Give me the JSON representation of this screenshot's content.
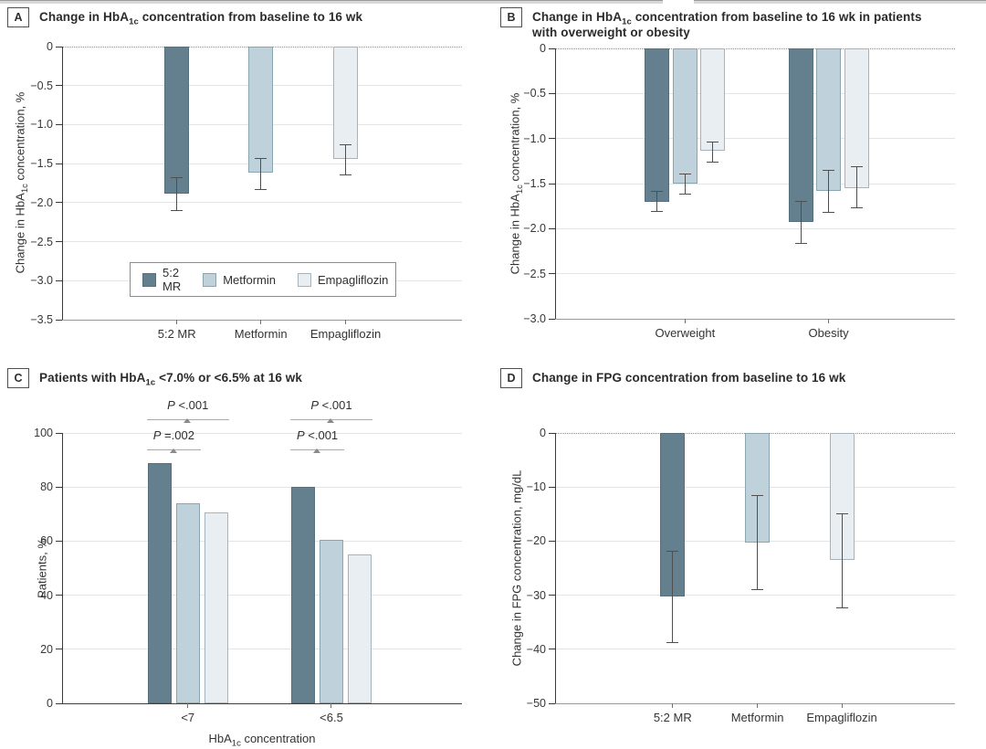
{
  "series": [
    {
      "name": "5:2 MR",
      "color": "#64808f",
      "border": "#42596370"
    },
    {
      "name": "Metformin",
      "color": "#bfd2db",
      "border": "#8aa4b0"
    },
    {
      "name": "Empagliflozin",
      "color": "#e9eef2",
      "border": "#a5b4bc"
    }
  ],
  "chart_data": [
    {
      "panel": "A",
      "type": "bar",
      "title_pre": "Change in HbA",
      "title_sub": "1c",
      "title_post": " concentration from baseline to 16 wk",
      "ylabel_pre": "Change in HbA",
      "ylabel_sub": "1c",
      "ylabel_post": " concentration, %",
      "ylim": [
        0,
        -3.5
      ],
      "yticks": [
        0,
        -0.5,
        -1,
        -1.5,
        -2,
        -2.5,
        -3,
        -3.5
      ],
      "ytick_labels": [
        "0",
        "−0.5",
        "−1.0",
        "−1.5",
        "−2.0",
        "−2.5",
        "−3.0",
        "−3.5"
      ],
      "categories": [
        "5:2 MR",
        "Metformin",
        "Empagliflozin"
      ],
      "values": [
        -1.88,
        -1.62,
        -1.44
      ],
      "ci": [
        [
          -1.68,
          -2.1
        ],
        [
          -1.43,
          -1.83
        ],
        [
          -1.26,
          -1.64
        ]
      ],
      "grid": true,
      "zero_line": "dotted",
      "legend_position": "inside-bottom-left"
    },
    {
      "panel": "B",
      "type": "bar",
      "grouped": true,
      "title_pre": "Change in HbA",
      "title_sub": "1c",
      "title_post": " concentration from baseline to 16 wk in patients with overweight or obesity",
      "ylabel_pre": "Change in HbA",
      "ylabel_sub": "1c",
      "ylabel_post": " concentration, %",
      "ylim": [
        0,
        -3
      ],
      "yticks": [
        0,
        -0.5,
        -1,
        -1.5,
        -2,
        -2.5,
        -3
      ],
      "ytick_labels": [
        "0",
        "−0.5",
        "−1.0",
        "−1.5",
        "−2.0",
        "−2.5",
        "−3.0"
      ],
      "categories": [
        "Overweight",
        "Obesity"
      ],
      "series": [
        {
          "name": "5:2 MR",
          "values": [
            -1.7,
            -1.93
          ],
          "ci": [
            [
              -1.59,
              -1.81
            ],
            [
              -1.7,
              -2.16
            ]
          ]
        },
        {
          "name": "Metformin",
          "values": [
            -1.5,
            -1.58
          ],
          "ci": [
            [
              -1.39,
              -1.62
            ],
            [
              -1.35,
              -1.82
            ]
          ]
        },
        {
          "name": "Empagliflozin",
          "values": [
            -1.14,
            -1.55
          ],
          "ci": [
            [
              -1.04,
              -1.26
            ],
            [
              -1.31,
              -1.77
            ]
          ]
        }
      ],
      "grid": true,
      "zero_line": "dotted"
    },
    {
      "panel": "C",
      "type": "bar",
      "grouped": true,
      "title_pre": "Patients with HbA",
      "title_sub": "1c",
      "title_post": " <7.0% or <6.5% at 16 wk",
      "ylabel_pre": "Patients, %",
      "ylabel_sub": "",
      "ylabel_post": "",
      "xlabel_pre": "HbA",
      "xlabel_sub": "1c",
      "xlabel_post": " concentration",
      "ylim": [
        0,
        100
      ],
      "yticks": [
        0,
        20,
        40,
        60,
        80,
        100
      ],
      "ytick_labels": [
        "0",
        "20",
        "40",
        "60",
        "80",
        "100"
      ],
      "categories": [
        "<7",
        "<6.5"
      ],
      "series": [
        {
          "name": "5:2 MR",
          "values": [
            89,
            80
          ]
        },
        {
          "name": "Metformin",
          "values": [
            74,
            60.5
          ]
        },
        {
          "name": "Empagliflozin",
          "values": [
            70.5,
            55
          ]
        }
      ],
      "grid": true,
      "annotations": [
        {
          "group": 0,
          "from": 0,
          "to": 2,
          "row": "upper",
          "label_p": "P",
          "label_rest": "<.001"
        },
        {
          "group": 0,
          "from": 0,
          "to": 1,
          "row": "lower",
          "label_p": "P",
          "label_rest": "=.002"
        },
        {
          "group": 1,
          "from": 0,
          "to": 2,
          "row": "upper",
          "label_p": "P",
          "label_rest": "<.001"
        },
        {
          "group": 1,
          "from": 0,
          "to": 1,
          "row": "lower",
          "label_p": "P",
          "label_rest": "<.001"
        }
      ]
    },
    {
      "panel": "D",
      "type": "bar",
      "title_pre": "Change in FPG concentration from baseline to 16 wk",
      "title_sub": "",
      "title_post": "",
      "ylabel_pre": "Change in FPG concentration, mg/dL",
      "ylabel_sub": "",
      "ylabel_post": "",
      "ylim": [
        0,
        -50
      ],
      "yticks": [
        0,
        -10,
        -20,
        -30,
        -40,
        -50
      ],
      "ytick_labels": [
        "0",
        "−10",
        "−20",
        "−30",
        "−40",
        "−50"
      ],
      "categories": [
        "5:2 MR",
        "Metformin",
        "Empagliflozin"
      ],
      "values": [
        -30.2,
        -20.2,
        -23.5
      ],
      "ci": [
        [
          -21.8,
          -38.7
        ],
        [
          -11.6,
          -28.9
        ],
        [
          -15.0,
          -32.4
        ]
      ],
      "grid": true,
      "zero_line": "dotted"
    }
  ]
}
